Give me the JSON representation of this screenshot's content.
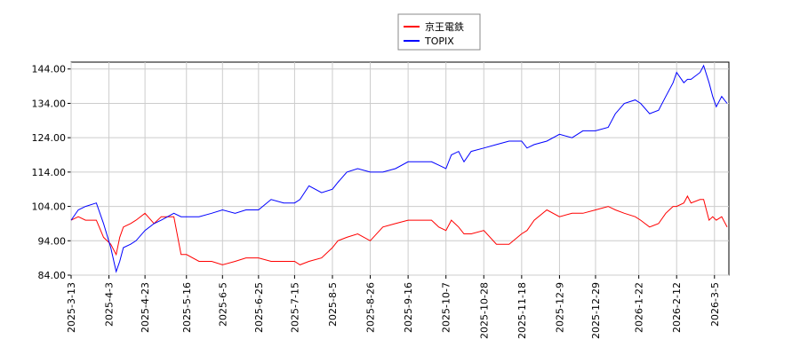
{
  "chart_data": {
    "type": "line",
    "x": [
      "2025-03-13",
      "2025-03-17",
      "2025-03-21",
      "2025-03-27",
      "2025-03-31",
      "2025-04-04",
      "2025-04-07",
      "2025-04-09",
      "2025-04-11",
      "2025-04-15",
      "2025-04-18",
      "2025-04-23",
      "2025-04-28",
      "2025-05-02",
      "2025-05-09",
      "2025-05-13",
      "2025-05-16",
      "2025-05-23",
      "2025-05-30",
      "2025-06-05",
      "2025-06-12",
      "2025-06-18",
      "2025-06-25",
      "2025-07-02",
      "2025-07-09",
      "2025-07-15",
      "2025-07-18",
      "2025-07-23",
      "2025-07-30",
      "2025-08-05",
      "2025-08-08",
      "2025-08-13",
      "2025-08-19",
      "2025-08-26",
      "2025-09-02",
      "2025-09-09",
      "2025-09-16",
      "2025-09-22",
      "2025-09-29",
      "2025-10-03",
      "2025-10-07",
      "2025-10-10",
      "2025-10-14",
      "2025-10-17",
      "2025-10-21",
      "2025-10-28",
      "2025-11-04",
      "2025-11-11",
      "2025-11-18",
      "2025-11-21",
      "2025-11-25",
      "2025-12-02",
      "2025-12-09",
      "2025-12-16",
      "2025-12-22",
      "2025-12-29",
      "2026-01-05",
      "2026-01-09",
      "2026-01-14",
      "2026-01-20",
      "2026-01-23",
      "2026-01-28",
      "2026-02-02",
      "2026-02-06",
      "2026-02-10",
      "2026-02-12",
      "2026-02-16",
      "2026-02-18",
      "2026-02-20",
      "2026-02-25",
      "2026-02-27",
      "2026-03-02",
      "2026-03-04",
      "2026-03-06",
      "2026-03-09",
      "2026-03-12"
    ],
    "series": [
      {
        "name": "京王電鉄",
        "color": "#ff0000",
        "values": [
          100,
          101,
          100,
          100,
          95,
          93,
          90,
          95,
          98,
          99,
          100,
          102,
          99,
          101,
          101,
          90,
          90,
          88,
          88,
          87,
          88,
          89,
          89,
          88,
          88,
          88,
          87,
          88,
          89,
          92,
          94,
          95,
          96,
          94,
          98,
          99,
          100,
          100,
          100,
          98,
          97,
          100,
          98,
          96,
          96,
          97,
          93,
          93,
          96,
          97,
          100,
          103,
          101,
          102,
          102,
          103,
          104,
          103,
          102,
          101,
          100,
          98,
          99,
          102,
          104,
          104,
          105,
          107,
          105,
          106,
          106,
          100,
          101,
          100,
          101,
          98
        ]
      },
      {
        "name": "TOPIX",
        "color": "#0000ff",
        "values": [
          100,
          103,
          104,
          105,
          99,
          92,
          85,
          88,
          92,
          93,
          94,
          97,
          99,
          100,
          102,
          101,
          101,
          101,
          102,
          103,
          102,
          103,
          103,
          106,
          105,
          105,
          106,
          110,
          108,
          109,
          111,
          114,
          115,
          114,
          114,
          115,
          117,
          117,
          117,
          116,
          115,
          119,
          120,
          117,
          120,
          121,
          122,
          123,
          123,
          121,
          122,
          123,
          125,
          124,
          126,
          126,
          127,
          131,
          134,
          135,
          134,
          131,
          132,
          136,
          140,
          143,
          140,
          141,
          141,
          143,
          145,
          140,
          136,
          133,
          136,
          134
        ]
      }
    ],
    "xlim": [
      "2025-03-13",
      "2026-03-13"
    ],
    "xticks": [
      {
        "value": "2025-03-13",
        "label": "2025-3-13"
      },
      {
        "value": "2025-04-03",
        "label": "2025-4-3"
      },
      {
        "value": "2025-04-23",
        "label": "2025-4-23"
      },
      {
        "value": "2025-05-16",
        "label": "2025-5-16"
      },
      {
        "value": "2025-06-05",
        "label": "2025-6-5"
      },
      {
        "value": "2025-06-25",
        "label": "2025-6-25"
      },
      {
        "value": "2025-07-15",
        "label": "2025-7-15"
      },
      {
        "value": "2025-08-05",
        "label": "2025-8-5"
      },
      {
        "value": "2025-08-26",
        "label": "2025-8-26"
      },
      {
        "value": "2025-09-16",
        "label": "2025-9-16"
      },
      {
        "value": "2025-10-07",
        "label": "2025-10-7"
      },
      {
        "value": "2025-10-28",
        "label": "2025-10-28"
      },
      {
        "value": "2025-11-18",
        "label": "2025-11-18"
      },
      {
        "value": "2025-12-09",
        "label": "2025-12-9"
      },
      {
        "value": "2025-12-29",
        "label": "2025-12-29"
      },
      {
        "value": "2026-01-22",
        "label": "2026-1-22"
      },
      {
        "value": "2026-02-12",
        "label": "2026-2-12"
      },
      {
        "value": "2026-03-05",
        "label": "2026-3-5"
      }
    ],
    "ylim": [
      84,
      146
    ],
    "yticks": [
      {
        "value": 84,
        "label": "84.00"
      },
      {
        "value": 94,
        "label": "94.00"
      },
      {
        "value": 104,
        "label": "104.00"
      },
      {
        "value": 114,
        "label": "114.00"
      },
      {
        "value": 124,
        "label": "124.00"
      },
      {
        "value": 134,
        "label": "134.00"
      },
      {
        "value": 144,
        "label": "144.00"
      }
    ],
    "grid": true
  }
}
